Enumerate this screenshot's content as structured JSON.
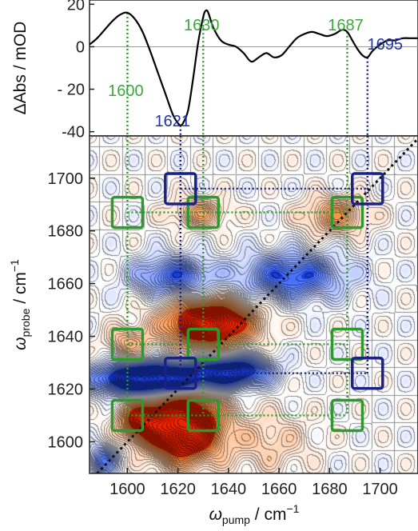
{
  "colors": {
    "green": "#2e9a2e",
    "navy": "#1a2288",
    "ann_green": "#3aa83a",
    "ann_blue": "#2233aa",
    "red": "#ee2200",
    "blue": "#1a4fe0"
  },
  "chart_data": [
    {
      "type": "line",
      "panel": "top",
      "ylabel": "ΔAbs / mOD",
      "xlim": [
        1585,
        1715
      ],
      "ylim": [
        -42,
        22
      ],
      "yticks": [
        {
          "v": 20,
          "t": "20"
        },
        {
          "v": 0,
          "t": "0"
        },
        {
          "v": -20,
          "t": "- 20"
        },
        {
          "v": -40,
          "t": "-40"
        }
      ],
      "zero_line": true,
      "x": [
        1585,
        1588,
        1591,
        1594,
        1597,
        1600,
        1603,
        1606,
        1609,
        1612,
        1615,
        1618,
        1620,
        1621,
        1622,
        1624,
        1626,
        1628,
        1630,
        1631,
        1632,
        1634,
        1637,
        1640,
        1643,
        1646,
        1649,
        1652,
        1655,
        1658,
        1661,
        1664,
        1667,
        1670,
        1673,
        1676,
        1679,
        1682,
        1685,
        1687,
        1689,
        1691,
        1693,
        1695,
        1697,
        1700,
        1703,
        1706,
        1709,
        1712,
        1715
      ],
      "y": [
        1,
        4,
        8,
        12,
        15,
        16,
        13,
        7,
        -2,
        -12,
        -22,
        -32,
        -36,
        -37,
        -36,
        -30,
        -15,
        2,
        14,
        17,
        16,
        9,
        3,
        1,
        0,
        -3,
        -7,
        -5,
        -3,
        -5,
        -4,
        0,
        4,
        6,
        7,
        6,
        5,
        6,
        8,
        7,
        3,
        -1,
        -4,
        -5,
        -2,
        1,
        3,
        3,
        4,
        4,
        4
      ],
      "annotations": [
        {
          "text": "1600",
          "x": 1600,
          "color": "green"
        },
        {
          "text": "1630",
          "x": 1630,
          "color": "green"
        },
        {
          "text": "1687",
          "x": 1687,
          "color": "green"
        },
        {
          "text": "1695",
          "x": 1695,
          "color": "blue"
        },
        {
          "text": "1621",
          "x": 1621,
          "color": "blue"
        }
      ]
    },
    {
      "type": "heatmap",
      "panel": "bottom",
      "xlabel_main": "ω",
      "xlabel_sub": "pump",
      "xlabel_unit": " / cm",
      "ylabel_main": "ω",
      "ylabel_sub": "probe",
      "ylabel_unit": " / cm",
      "unit_exp": "−1",
      "xlim": [
        1585,
        1715
      ],
      "ylim": [
        1588,
        1716
      ],
      "xticks": [
        1600,
        1620,
        1640,
        1660,
        1680,
        1700
      ],
      "yticks": [
        1600,
        1620,
        1640,
        1660,
        1680,
        1700
      ],
      "diagonal": true,
      "features": [
        {
          "x": 1632,
          "y": 1645,
          "sx": 12,
          "sy": 6,
          "a": 1.6
        },
        {
          "x": 1622,
          "y": 1606,
          "sx": 10,
          "sy": 9,
          "a": 1.8
        },
        {
          "x": 1605,
          "y": 1608,
          "sx": 6,
          "sy": 5,
          "a": 0.9
        },
        {
          "x": 1610,
          "y": 1624,
          "sx": 15,
          "sy": 4,
          "a": -1.9
        },
        {
          "x": 1642,
          "y": 1627,
          "sx": 10,
          "sy": 4,
          "a": -1.2
        },
        {
          "x": 1618,
          "y": 1663,
          "sx": 11,
          "sy": 5,
          "a": -0.8
        },
        {
          "x": 1665,
          "y": 1663,
          "sx": 14,
          "sy": 6,
          "a": -0.9
        },
        {
          "x": 1628,
          "y": 1687,
          "sx": 8,
          "sy": 4,
          "a": 0.5
        },
        {
          "x": 1682,
          "y": 1686,
          "sx": 9,
          "sy": 5,
          "a": 0.6
        },
        {
          "x": 1600,
          "y": 1638,
          "sx": 6,
          "sy": 4,
          "a": 0.45
        },
        {
          "x": 1590,
          "y": 1593,
          "sx": 4,
          "sy": 4,
          "a": -0.7
        },
        {
          "x": 1655,
          "y": 1600,
          "sx": 12,
          "sy": 8,
          "a": 0.3
        }
      ],
      "green_rect": {
        "x": [
          1600,
          1630,
          1687
        ],
        "y": [
          1610,
          1637,
          1687
        ]
      },
      "blue_rect": {
        "x": [
          1621,
          1695
        ],
        "y": [
          1626,
          1696
        ]
      },
      "green_squares": [
        {
          "x": 1600,
          "y": 1687
        },
        {
          "x": 1630,
          "y": 1687
        },
        {
          "x": 1687,
          "y": 1687
        },
        {
          "x": 1600,
          "y": 1637
        },
        {
          "x": 1630,
          "y": 1637
        },
        {
          "x": 1687,
          "y": 1637
        },
        {
          "x": 1600,
          "y": 1610
        },
        {
          "x": 1630,
          "y": 1610
        },
        {
          "x": 1687,
          "y": 1610
        }
      ],
      "blue_squares": [
        {
          "x": 1621,
          "y": 1696
        },
        {
          "x": 1695,
          "y": 1696
        },
        {
          "x": 1621,
          "y": 1626
        },
        {
          "x": 1695,
          "y": 1626
        }
      ]
    }
  ]
}
